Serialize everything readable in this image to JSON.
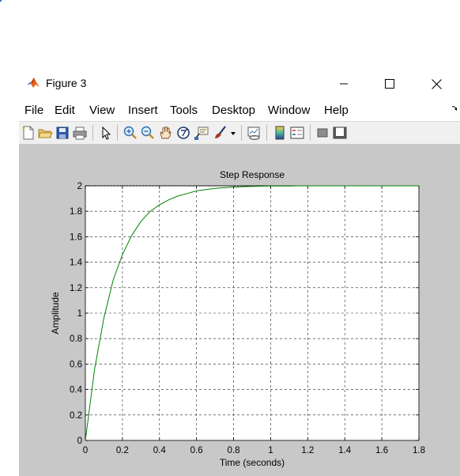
{
  "window": {
    "title": "Figure 3",
    "controls": [
      "minimize",
      "maximize",
      "close"
    ]
  },
  "menu": {
    "items": [
      "File",
      "Edit",
      "View",
      "Insert",
      "Tools",
      "Desktop",
      "Window",
      "Help"
    ]
  },
  "toolbar": {
    "icons": [
      "new-figure-icon",
      "open-file-icon",
      "save-icon",
      "print-icon",
      "edit-plot-icon",
      "zoom-in-icon",
      "zoom-out-icon",
      "pan-icon",
      "rotate-3d-icon",
      "data-cursor-icon",
      "brush-icon",
      "brush-dropdown-icon",
      "link-plot-icon",
      "insert-colorbar-icon",
      "insert-legend-icon",
      "hide-plot-tools-icon",
      "show-plot-tools-icon"
    ]
  },
  "chart_data": {
    "type": "line",
    "title": "Step Response",
    "xlabel": "Time (seconds)",
    "ylabel": "Amplitude",
    "xlim": [
      0,
      1.8
    ],
    "ylim": [
      0,
      2
    ],
    "xticks": [
      "0",
      "0.2",
      "0.4",
      "0.6",
      "0.8",
      "1",
      "1.2",
      "1.4",
      "1.6",
      "1.8"
    ],
    "yticks": [
      "0",
      "0.2",
      "0.4",
      "0.6",
      "0.8",
      "1",
      "1.2",
      "1.4",
      "1.6",
      "1.8",
      "2"
    ],
    "grid": true,
    "series": [
      {
        "color": "#008000",
        "x": [
          0,
          0.05,
          0.1,
          0.15,
          0.2,
          0.25,
          0.3,
          0.35,
          0.4,
          0.45,
          0.5,
          0.55,
          0.6,
          0.65,
          0.7,
          0.75,
          0.8,
          0.85,
          0.9,
          0.95,
          1.0,
          1.05,
          1.1,
          1.15,
          1.2,
          1.4,
          1.6,
          1.8
        ],
        "y": [
          0,
          0.56,
          0.96,
          1.26,
          1.46,
          1.61,
          1.72,
          1.8,
          1.85,
          1.89,
          1.92,
          1.94,
          1.96,
          1.97,
          1.98,
          1.985,
          1.99,
          1.993,
          1.995,
          1.997,
          1.998,
          1.999,
          1.999,
          2.0,
          2.0,
          2.0,
          2.0,
          2.0
        ]
      }
    ],
    "reference_line": {
      "y": 2,
      "x_end": 1.15,
      "color": "#000000",
      "style": "dashed"
    }
  }
}
